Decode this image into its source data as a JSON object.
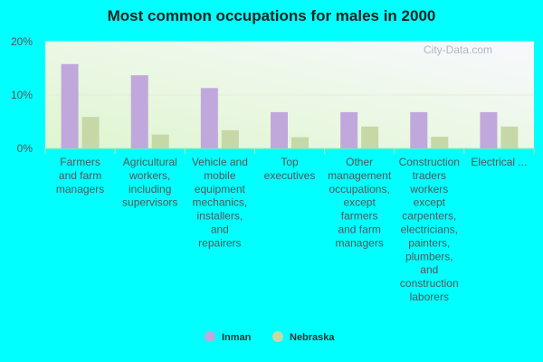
{
  "colors": {
    "background": "#00ffff",
    "series_inman": "#c0a8dc",
    "series_nebraska": "#c6d8a6",
    "title": "#222222"
  },
  "watermark": "City-Data.com",
  "chart_data": {
    "type": "bar",
    "title": "Most common occupations for males in 2000",
    "categories": [
      "Farmers and farm managers",
      "Agricultural workers, including supervisors",
      "Vehicle and mobile equipment mechanics, installers, and repairers",
      "Top executives",
      "Other management occupations, except farmers and farm managers",
      "Construction traders workers except carpenters, electricians, painters, plumbers, and construction laborers",
      "Electrical ..."
    ],
    "category_lines": [
      [
        "Farmers",
        "and farm",
        "managers"
      ],
      [
        "Agricultural",
        "workers,",
        "including",
        "supervisors"
      ],
      [
        "Vehicle and",
        "mobile",
        "equipment",
        "mechanics,",
        "installers,",
        "and",
        "repairers"
      ],
      [
        "Top",
        "executives"
      ],
      [
        "Other",
        "management",
        "occupations,",
        "except",
        "farmers",
        "and farm",
        "managers"
      ],
      [
        "Construction",
        "traders",
        "workers",
        "except",
        "carpenters,",
        "electricians,",
        "painters,",
        "plumbers,",
        "and",
        "construction",
        "laborers"
      ],
      [
        "Electrical ..."
      ]
    ],
    "series": [
      {
        "name": "Inman",
        "values": [
          15.8,
          13.7,
          11.3,
          6.8,
          6.8,
          6.8,
          6.8
        ]
      },
      {
        "name": "Nebraska",
        "values": [
          5.9,
          2.6,
          3.4,
          2.1,
          4.1,
          2.2,
          4.1
        ]
      }
    ],
    "y_ticks": [
      "0%",
      "10%",
      "20%"
    ],
    "y_tick_values": [
      0,
      10,
      20
    ],
    "ylim": [
      0,
      20
    ],
    "grid": true,
    "legend_position": "bottom",
    "xlabel": "",
    "ylabel": ""
  }
}
